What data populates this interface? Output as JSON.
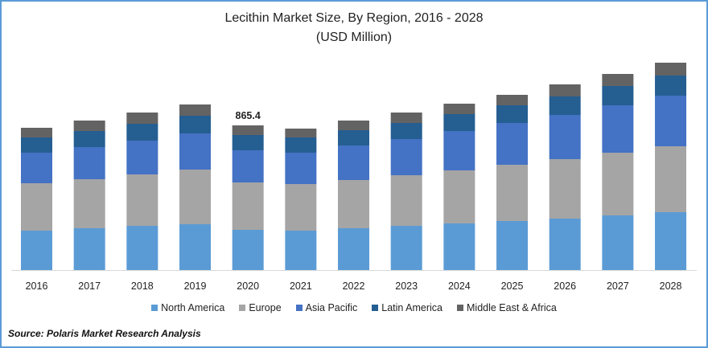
{
  "chart_data": {
    "type": "bar",
    "stacked": true,
    "title": "Lecithin Market Size, By Region, 2016 - 2028",
    "subtitle": "(USD Million)",
    "xlabel": "",
    "ylabel": "",
    "categories": [
      "2016",
      "2017",
      "2018",
      "2019",
      "2020",
      "2021",
      "2022",
      "2023",
      "2024",
      "2025",
      "2026",
      "2027",
      "2028"
    ],
    "series": [
      {
        "name": "North America",
        "color": "#5b9bd5",
        "values": [
          235.6,
          250.0,
          264.4,
          274.0,
          240.4,
          235.6,
          250.0,
          264.4,
          278.9,
          293.3,
          307.7,
          326.9,
          346.2
        ]
      },
      {
        "name": "Europe",
        "color": "#a5a5a5",
        "values": [
          283.7,
          293.3,
          307.7,
          327.0,
          283.6,
          278.8,
          288.5,
          302.9,
          317.3,
          336.5,
          355.8,
          375.0,
          394.2
        ]
      },
      {
        "name": "Asia Pacific",
        "color": "#4472c4",
        "values": [
          182.7,
          192.3,
          201.9,
          216.3,
          192.4,
          187.5,
          206.7,
          216.4,
          235.5,
          250.0,
          264.4,
          283.7,
          302.9
        ]
      },
      {
        "name": "Latin America",
        "color": "#255e91",
        "values": [
          91.3,
          96.1,
          101.0,
          105.8,
          91.3,
          91.4,
          91.4,
          96.1,
          101.0,
          105.8,
          110.6,
          115.4,
          120.2
        ]
      },
      {
        "name": "Middle East & Africa",
        "color": "#636363",
        "values": [
          57.7,
          62.6,
          67.3,
          67.3,
          57.7,
          52.9,
          57.7,
          62.5,
          62.5,
          62.5,
          72.1,
          72.1,
          76.9
        ]
      }
    ],
    "annotations": [
      {
        "category": "2020",
        "text": "865.4"
      }
    ],
    "ylim": [
      0,
      1300
    ],
    "grid": false,
    "legend": "bottom"
  },
  "source": "Source: Polaris  Market Research Analysis"
}
